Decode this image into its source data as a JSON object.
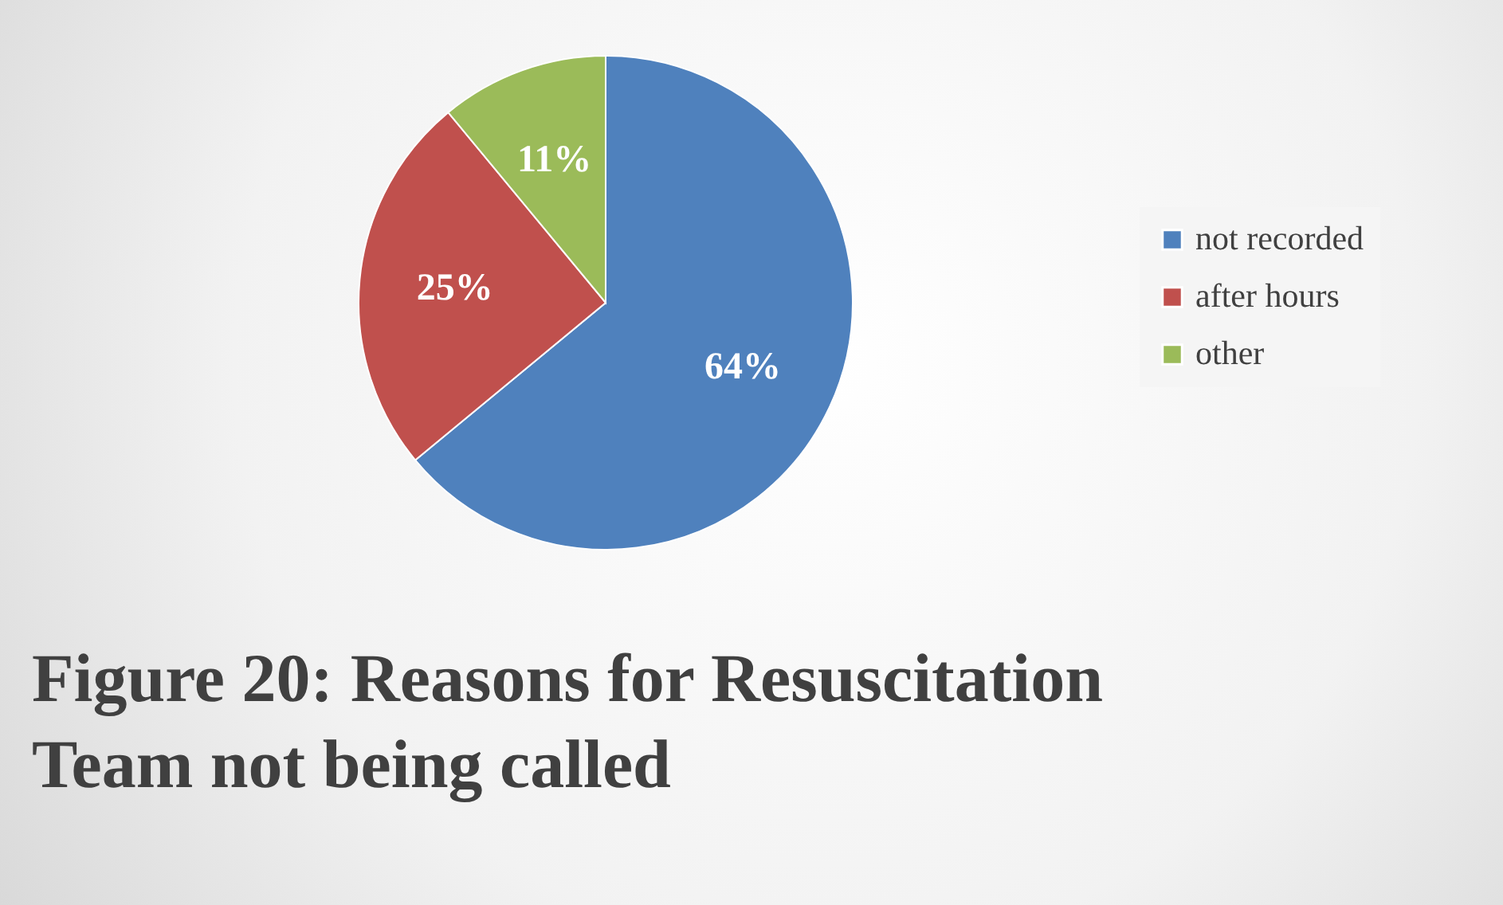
{
  "chart_data": {
    "type": "pie",
    "title": "Figure 20: Reasons for Resuscitation Team not being called",
    "categories": [
      "not recorded",
      "after hours",
      "other"
    ],
    "values": [
      64,
      25,
      11
    ],
    "colors": [
      "#4f81bd",
      "#c0504d",
      "#9bbb59"
    ],
    "value_labels": [
      "64%",
      "25%",
      "11%"
    ],
    "legend": "right"
  }
}
